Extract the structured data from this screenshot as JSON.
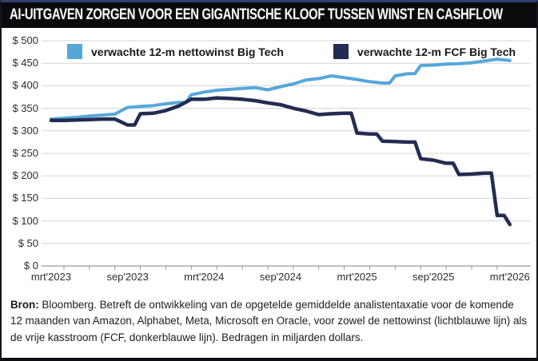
{
  "title": "AI-UITGAVEN ZORGEN VOOR EEN GIGANTISCHE KLOOF TUSSEN WINST EN CASHFLOW",
  "footer": {
    "bold_label": "Bron:",
    "text": " Bloomberg. Betreft de ontwikkeling van de opgetelde gemiddelde analistentaxatie voor de komende 12 maanden van Amazon, Alphabet, Meta, Microsoft en Oracle, voor zowel de nettowinst (lichtblauwe lijn) als de vrije kasstroom (FCF, donkerblauwe lijn). Bedragen in miljarden dollars."
  },
  "chart_data": {
    "type": "line",
    "title": "AI-UITGAVEN ZORGEN VOOR EEN GIGANTISCHE KLOOF TUSSEN WINST EN CASHFLOW",
    "ylim": [
      0,
      500
    ],
    "grid": "horizontal",
    "legend_position": "top",
    "y_axis": {
      "tick_values": [
        500,
        450,
        400,
        350,
        300,
        250,
        200,
        150,
        100,
        50,
        0
      ],
      "tick_labels": [
        "$ 500",
        "$ 450",
        "$ 400",
        "$ 350",
        "$ 300",
        "$ 250",
        "$ 200",
        "$ 150",
        "$ 100",
        "$ 50",
        "$ 0"
      ]
    },
    "x": [
      "mrt'23",
      "apr'23",
      "mei'23",
      "jun'23",
      "jul'23",
      "aug'23",
      "sep'23",
      "okt'23",
      "nov'23",
      "dec'23",
      "jan'24",
      "feb'24",
      "mrt'24",
      "apr'24",
      "mei'24",
      "jun'24",
      "jul'24",
      "aug'24",
      "sep'24",
      "okt'24",
      "nov'24",
      "dec'24",
      "jan'25",
      "feb'25",
      "mrt'25",
      "apr'25",
      "mei'25",
      "jun'25",
      "jul'25",
      "aug'25",
      "sep'25",
      "okt'25",
      "nov'25",
      "dec'25",
      "jan'26",
      "feb'26",
      "mrt'26"
    ],
    "x_axis": {
      "tick_labels": [
        "mrt'2023",
        "sep'2023",
        "mrt'2024",
        "sep'2024",
        "mrt'2025",
        "sep'2025",
        "mrt'2026"
      ],
      "tick_month_index": [
        0,
        6,
        12,
        18,
        24,
        30,
        36
      ],
      "minor_tick_every_months": 2
    },
    "series": [
      {
        "name": "verwachte 12-m nettowinst Big Tech",
        "color": "#55a7d9",
        "values": [
          326,
          328,
          330,
          333,
          335,
          337,
          352,
          354,
          356,
          360,
          363,
          380,
          386,
          390,
          392,
          394,
          396,
          391,
          398,
          404,
          413,
          416,
          422,
          418,
          414,
          409,
          406,
          422,
          427,
          445,
          446,
          448,
          449,
          451,
          455,
          459,
          456
        ]
      },
      {
        "name": "verwachte 12-m FCF Big Tech",
        "color": "#232c52",
        "values": [
          323,
          323,
          324,
          325,
          326,
          326,
          313,
          338,
          339,
          345,
          355,
          370,
          370,
          373,
          372,
          370,
          367,
          362,
          358,
          350,
          344,
          336,
          338,
          339,
          295,
          293,
          277,
          276,
          275,
          238,
          235,
          228,
          203,
          204,
          206,
          112,
          92
        ]
      }
    ]
  }
}
